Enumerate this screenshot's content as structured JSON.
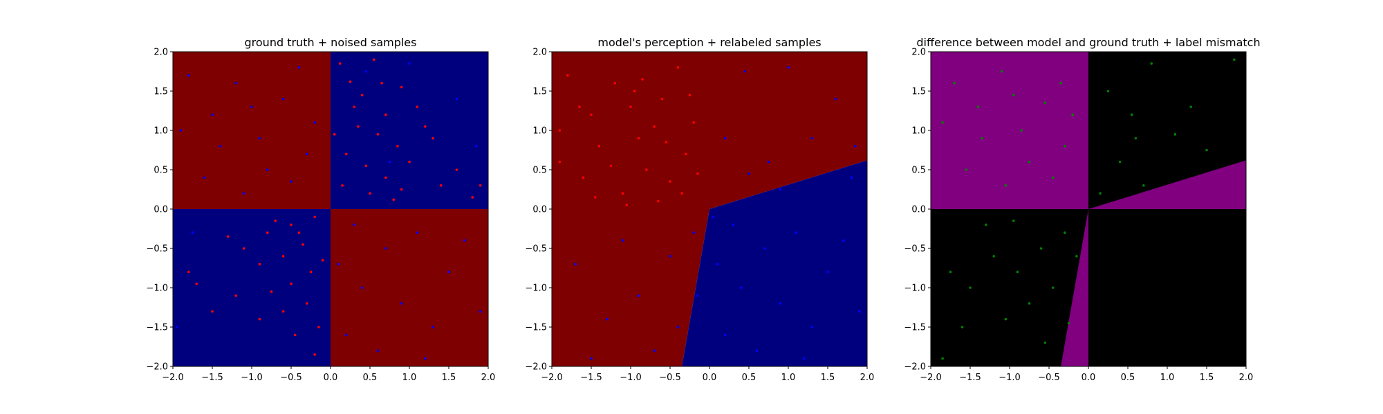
{
  "chart_data": [
    {
      "type": "scatter",
      "title": "ground truth + noised samples",
      "xlim": [
        -2.0,
        2.0
      ],
      "ylim": [
        -2.0,
        2.0
      ],
      "x_ticks": [
        "−2.0",
        "−1.5",
        "−1.0",
        "−0.5",
        "0.0",
        "0.5",
        "1.0",
        "1.5",
        "2.0"
      ],
      "y_ticks": [
        "−2.0",
        "−1.5",
        "−1.0",
        "−0.5",
        "0.0",
        "0.5",
        "1.0",
        "1.5",
        "2.0"
      ],
      "background_regions": [
        {
          "color": "#7f0000",
          "polygon": [
            [
              -2,
              0
            ],
            [
              0,
              0
            ],
            [
              0,
              2
            ],
            [
              -2,
              2
            ]
          ]
        },
        {
          "color": "#00007f",
          "polygon": [
            [
              0,
              0
            ],
            [
              2,
              0
            ],
            [
              2,
              2
            ],
            [
              0,
              2
            ]
          ]
        },
        {
          "color": "#00007f",
          "polygon": [
            [
              -2,
              -2
            ],
            [
              0,
              -2
            ],
            [
              0,
              0
            ],
            [
              -2,
              0
            ]
          ]
        },
        {
          "color": "#7f0000",
          "polygon": [
            [
              0,
              -2
            ],
            [
              2,
              -2
            ],
            [
              2,
              0
            ],
            [
              0,
              0
            ]
          ]
        }
      ],
      "series": [
        {
          "color": "#ff0000",
          "points": [
            [
              0.12,
              1.85
            ],
            [
              0.25,
              1.62
            ],
            [
              0.4,
              1.45
            ],
            [
              0.55,
              1.9
            ],
            [
              0.7,
              1.2
            ],
            [
              0.9,
              1.55
            ],
            [
              1.1,
              1.3
            ],
            [
              0.35,
              1.05
            ],
            [
              0.6,
              0.95
            ],
            [
              0.85,
              0.8
            ],
            [
              0.2,
              0.7
            ],
            [
              0.45,
              0.55
            ],
            [
              0.7,
              0.4
            ],
            [
              1.0,
              0.6
            ],
            [
              1.3,
              0.9
            ],
            [
              0.15,
              0.3
            ],
            [
              0.5,
              0.2
            ],
            [
              0.9,
              0.25
            ],
            [
              1.4,
              0.3
            ],
            [
              1.8,
              0.15
            ],
            [
              0.3,
              1.3
            ],
            [
              0.65,
              1.6
            ],
            [
              1.2,
              1.05
            ],
            [
              0.05,
              0.95
            ],
            [
              0.8,
              0.12
            ],
            [
              1.6,
              0.5
            ],
            [
              1.9,
              0.3
            ],
            [
              -0.2,
              -0.1
            ],
            [
              -0.5,
              -0.2
            ],
            [
              -0.8,
              -0.3
            ],
            [
              -0.35,
              -0.45
            ],
            [
              -0.6,
              -0.6
            ],
            [
              -0.9,
              -0.7
            ],
            [
              -0.25,
              -0.8
            ],
            [
              -0.5,
              -0.95
            ],
            [
              -0.75,
              -1.05
            ],
            [
              -0.3,
              -1.2
            ],
            [
              -0.6,
              -1.3
            ],
            [
              -0.15,
              -1.5
            ],
            [
              -0.45,
              -1.6
            ],
            [
              -0.9,
              -1.4
            ],
            [
              -1.2,
              -1.1
            ],
            [
              -1.5,
              -1.3
            ],
            [
              -1.1,
              -0.5
            ],
            [
              -0.4,
              -0.3
            ],
            [
              -0.1,
              -0.65
            ],
            [
              -0.7,
              -0.15
            ],
            [
              -1.3,
              -0.35
            ],
            [
              -0.2,
              -1.85
            ],
            [
              -1.8,
              -0.8
            ],
            [
              -1.7,
              -0.95
            ]
          ]
        },
        {
          "color": "#0000ff",
          "points": [
            [
              -1.8,
              1.7
            ],
            [
              -1.5,
              1.2
            ],
            [
              -1.2,
              1.6
            ],
            [
              -0.9,
              0.9
            ],
            [
              -0.6,
              1.4
            ],
            [
              -0.3,
              0.7
            ],
            [
              -1.6,
              0.4
            ],
            [
              -1.1,
              0.2
            ],
            [
              -0.5,
              0.35
            ],
            [
              -0.2,
              1.1
            ],
            [
              -1.4,
              0.8
            ],
            [
              -0.8,
              0.5
            ],
            [
              -1.9,
              1.0
            ],
            [
              -0.4,
              1.8
            ],
            [
              -1.0,
              1.3
            ],
            [
              0.3,
              -0.2
            ],
            [
              0.7,
              -0.5
            ],
            [
              1.1,
              -0.3
            ],
            [
              1.5,
              -0.8
            ],
            [
              0.4,
              -1.0
            ],
            [
              0.9,
              -1.2
            ],
            [
              1.3,
              -1.5
            ],
            [
              0.2,
              -1.6
            ],
            [
              0.6,
              -1.8
            ],
            [
              1.7,
              -0.4
            ],
            [
              1.9,
              -1.3
            ],
            [
              0.1,
              -0.7
            ],
            [
              1.2,
              -1.9
            ],
            [
              -1.95,
              -1.5
            ],
            [
              -1.75,
              -0.3
            ],
            [
              1.0,
              1.85
            ],
            [
              1.6,
              1.4
            ],
            [
              0.45,
              1.75
            ],
            [
              1.85,
              0.8
            ],
            [
              0.75,
              0.6
            ]
          ]
        }
      ]
    },
    {
      "type": "scatter",
      "title": "model's perception + relabeled samples",
      "xlim": [
        -2.0,
        2.0
      ],
      "ylim": [
        -2.0,
        2.0
      ],
      "x_ticks": [
        "−2.0",
        "−1.5",
        "−1.0",
        "−0.5",
        "0.0",
        "0.5",
        "1.0",
        "1.5",
        "2.0"
      ],
      "y_ticks": [
        "−2.0",
        "−1.5",
        "−1.0",
        "−0.5",
        "0.0",
        "0.5",
        "1.0",
        "1.5",
        "2.0"
      ],
      "background_regions": [
        {
          "color": "#7f0000",
          "polygon": [
            [
              -2,
              -2
            ],
            [
              -0.35,
              -2
            ],
            [
              0,
              0
            ],
            [
              2,
              0.62
            ],
            [
              2,
              2
            ],
            [
              -2,
              2
            ]
          ]
        },
        {
          "color": "#00007f",
          "polygon": [
            [
              -0.35,
              -2
            ],
            [
              2,
              -2
            ],
            [
              2,
              0.62
            ],
            [
              0,
              0
            ]
          ]
        }
      ],
      "series": [
        {
          "color": "#ff0000",
          "points": [
            [
              -1.8,
              1.7
            ],
            [
              -1.5,
              1.2
            ],
            [
              -1.2,
              1.6
            ],
            [
              -0.9,
              0.9
            ],
            [
              -0.6,
              1.4
            ],
            [
              -0.3,
              0.7
            ],
            [
              -1.6,
              0.4
            ],
            [
              -1.1,
              0.2
            ],
            [
              -0.5,
              0.35
            ],
            [
              -0.2,
              1.1
            ],
            [
              -1.4,
              0.8
            ],
            [
              -0.8,
              0.5
            ],
            [
              -1.9,
              1.0
            ],
            [
              -0.4,
              1.8
            ],
            [
              -1.0,
              1.3
            ],
            [
              -0.7,
              1.05
            ],
            [
              -0.35,
              0.2
            ],
            [
              -1.25,
              0.55
            ],
            [
              -0.15,
              0.45
            ],
            [
              -0.85,
              1.65
            ],
            [
              -1.65,
              1.3
            ],
            [
              -0.55,
              0.85
            ],
            [
              -1.05,
              0.05
            ],
            [
              -0.25,
              1.45
            ],
            [
              -1.45,
              0.15
            ],
            [
              -0.65,
              0.1
            ],
            [
              -1.9,
              0.6
            ],
            [
              -0.95,
              1.5
            ]
          ]
        },
        {
          "color": "#0000ff",
          "points": [
            [
              0.3,
              -0.2
            ],
            [
              0.7,
              -0.5
            ],
            [
              1.1,
              -0.3
            ],
            [
              1.5,
              -0.8
            ],
            [
              0.4,
              -1.0
            ],
            [
              0.9,
              -1.2
            ],
            [
              1.3,
              -1.5
            ],
            [
              0.2,
              -1.6
            ],
            [
              0.6,
              -1.8
            ],
            [
              1.7,
              -0.4
            ],
            [
              1.9,
              -1.3
            ],
            [
              0.1,
              -0.7
            ],
            [
              1.2,
              -1.9
            ],
            [
              -0.2,
              -0.3
            ],
            [
              -0.5,
              -0.6
            ],
            [
              -0.9,
              -1.1
            ],
            [
              -1.3,
              -1.4
            ],
            [
              -1.7,
              -0.7
            ],
            [
              -0.4,
              -1.5
            ],
            [
              -1.1,
              -0.4
            ],
            [
              -0.7,
              -1.8
            ],
            [
              0.5,
              0.45
            ],
            [
              1.0,
              1.8
            ],
            [
              1.6,
              1.4
            ],
            [
              0.45,
              1.75
            ],
            [
              1.85,
              0.8
            ],
            [
              0.75,
              0.6
            ],
            [
              0.2,
              0.9
            ],
            [
              1.3,
              0.9
            ],
            [
              0.9,
              0.25
            ],
            [
              1.8,
              0.4
            ],
            [
              -1.5,
              -1.9
            ],
            [
              -0.15,
              -1.1
            ],
            [
              0.05,
              -0.1
            ]
          ]
        }
      ]
    },
    {
      "type": "scatter",
      "title": "difference between model and ground truth + label mismatch",
      "xlim": [
        -2.0,
        2.0
      ],
      "ylim": [
        -2.0,
        2.0
      ],
      "x_ticks": [
        "−2.0",
        "−1.5",
        "−1.0",
        "−0.5",
        "0.0",
        "0.5",
        "1.0",
        "1.5",
        "2.0"
      ],
      "y_ticks": [
        "−2.0",
        "−1.5",
        "−1.0",
        "−0.5",
        "0.0",
        "0.5",
        "1.0",
        "1.5",
        "2.0"
      ],
      "background_regions": [
        {
          "color": "#000000",
          "polygon": [
            [
              -2,
              -2
            ],
            [
              2,
              -2
            ],
            [
              2,
              2
            ],
            [
              -2,
              2
            ]
          ]
        },
        {
          "color": "#800080",
          "polygon": [
            [
              -2,
              0
            ],
            [
              0,
              0
            ],
            [
              0,
              2
            ],
            [
              -2,
              2
            ]
          ]
        },
        {
          "color": "#800080",
          "polygon": [
            [
              0,
              0
            ],
            [
              2,
              0.62
            ],
            [
              2,
              0
            ]
          ]
        },
        {
          "color": "#800080",
          "polygon": [
            [
              -0.35,
              -2
            ],
            [
              0,
              -2
            ],
            [
              0,
              0
            ]
          ]
        }
      ],
      "series": [
        {
          "color": "#008000",
          "points": [
            [
              -1.7,
              1.6
            ],
            [
              -1.4,
              1.3
            ],
            [
              -1.1,
              1.75
            ],
            [
              -0.85,
              1.0
            ],
            [
              -0.55,
              1.35
            ],
            [
              -0.3,
              0.8
            ],
            [
              -1.55,
              0.5
            ],
            [
              -1.05,
              0.3
            ],
            [
              -0.45,
              0.4
            ],
            [
              -0.2,
              1.2
            ],
            [
              -1.35,
              0.9
            ],
            [
              -0.75,
              0.6
            ],
            [
              -1.85,
              1.1
            ],
            [
              -0.35,
              1.6
            ],
            [
              -0.95,
              1.45
            ],
            [
              0.25,
              1.5
            ],
            [
              0.55,
              1.2
            ],
            [
              0.8,
              1.85
            ],
            [
              1.1,
              0.95
            ],
            [
              0.4,
              0.6
            ],
            [
              0.7,
              0.3
            ],
            [
              1.5,
              0.75
            ],
            [
              0.15,
              0.2
            ],
            [
              1.85,
              1.9
            ],
            [
              1.3,
              1.3
            ],
            [
              0.6,
              0.9
            ],
            [
              -0.3,
              -0.3
            ],
            [
              -0.6,
              -0.5
            ],
            [
              -0.9,
              -0.8
            ],
            [
              -0.45,
              -1.0
            ],
            [
              -0.75,
              -1.2
            ],
            [
              -1.2,
              -0.6
            ],
            [
              -1.5,
              -1.0
            ],
            [
              -0.25,
              -1.45
            ],
            [
              -0.55,
              -1.7
            ],
            [
              -1.05,
              -1.4
            ],
            [
              -1.75,
              -0.8
            ],
            [
              -1.85,
              -1.9
            ],
            [
              -0.15,
              -0.6
            ],
            [
              -1.3,
              -0.2
            ],
            [
              -0.95,
              -0.15
            ],
            [
              -1.6,
              -1.5
            ]
          ]
        }
      ]
    }
  ]
}
